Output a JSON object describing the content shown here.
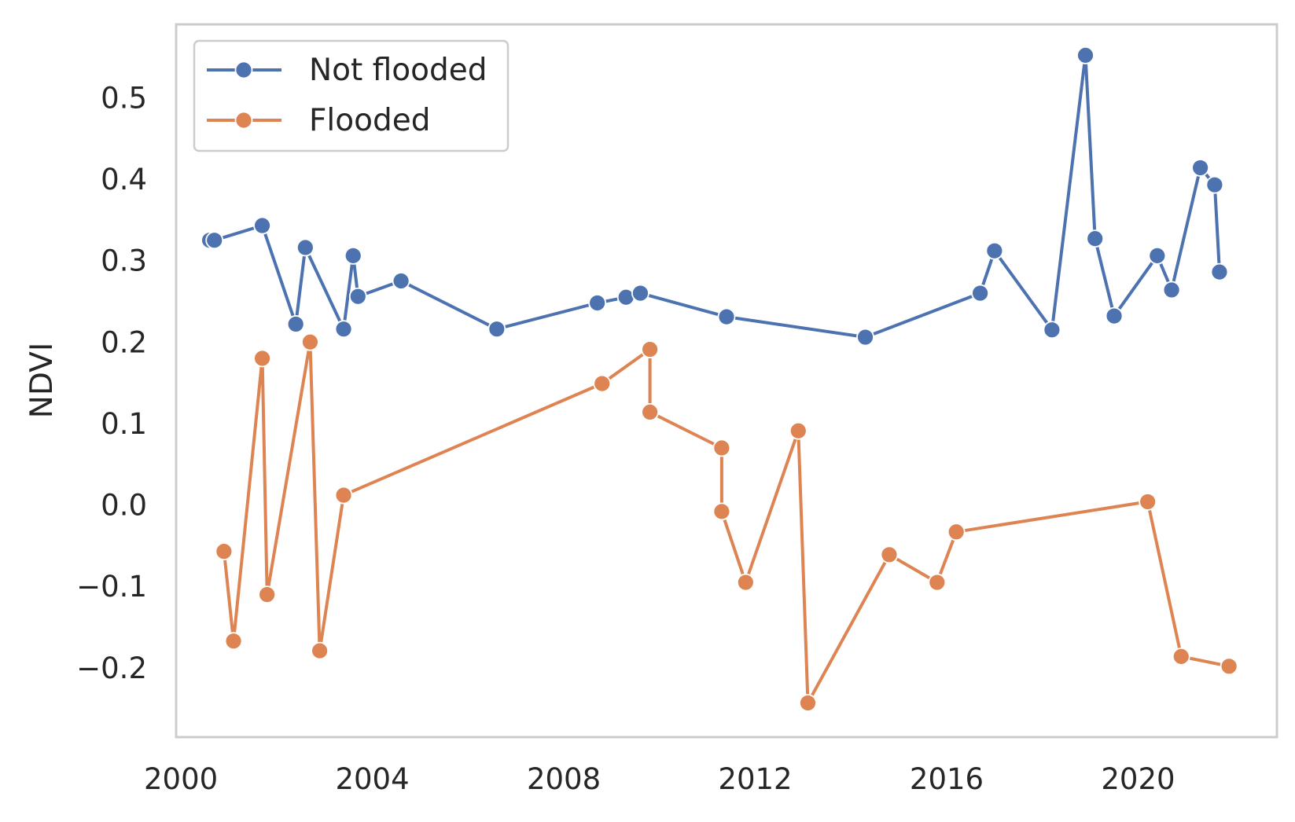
{
  "chart_data": {
    "type": "line",
    "xlabel": "",
    "ylabel": "NDVI",
    "xlim": [
      1999.9,
      2022.9
    ],
    "ylim": [
      -0.285,
      0.59
    ],
    "x_ticks": [
      2000,
      2004,
      2008,
      2012,
      2016,
      2020
    ],
    "y_ticks": [
      -0.2,
      -0.1,
      0.0,
      0.1,
      0.2,
      0.3,
      0.4,
      0.5
    ],
    "y_tick_labels": [
      "−0.2",
      "−0.1",
      "0.0",
      "0.1",
      "0.2",
      "0.3",
      "0.4",
      "0.5"
    ],
    "grid": false,
    "legend_position": "top-left",
    "marker": "circle",
    "series": [
      {
        "name": "Not flooded",
        "color": "#4c72b0",
        "points": [
          [
            2000.6,
            0.325
          ],
          [
            2000.7,
            0.325
          ],
          [
            2001.7,
            0.343
          ],
          [
            2002.4,
            0.222
          ],
          [
            2002.6,
            0.316
          ],
          [
            2003.4,
            0.216
          ],
          [
            2003.6,
            0.306
          ],
          [
            2003.7,
            0.256
          ],
          [
            2004.6,
            0.275
          ],
          [
            2006.6,
            0.216
          ],
          [
            2008.7,
            0.248
          ],
          [
            2009.3,
            0.255
          ],
          [
            2009.6,
            0.26
          ],
          [
            2011.4,
            0.231
          ],
          [
            2014.3,
            0.206
          ],
          [
            2016.7,
            0.26
          ],
          [
            2017.0,
            0.312
          ],
          [
            2018.2,
            0.215
          ],
          [
            2018.9,
            0.552
          ],
          [
            2019.1,
            0.327
          ],
          [
            2019.5,
            0.232
          ],
          [
            2020.4,
            0.306
          ],
          [
            2020.7,
            0.264
          ],
          [
            2021.3,
            0.414
          ],
          [
            2021.6,
            0.393
          ],
          [
            2021.7,
            0.286
          ]
        ]
      },
      {
        "name": "Flooded",
        "color": "#dd8452",
        "points": [
          [
            2000.9,
            -0.057
          ],
          [
            2001.1,
            -0.167
          ],
          [
            2001.7,
            0.18
          ],
          [
            2001.8,
            -0.11
          ],
          [
            2002.7,
            0.2
          ],
          [
            2002.9,
            -0.179
          ],
          [
            2003.4,
            0.012
          ],
          [
            2008.8,
            0.149
          ],
          [
            2009.8,
            0.191
          ],
          [
            2009.8,
            0.114
          ],
          [
            2011.3,
            0.07
          ],
          [
            2011.3,
            -0.008
          ],
          [
            2011.8,
            -0.095
          ],
          [
            2012.9,
            0.091
          ],
          [
            2013.1,
            -0.243
          ],
          [
            2014.8,
            -0.061
          ],
          [
            2015.8,
            -0.095
          ],
          [
            2016.2,
            -0.033
          ],
          [
            2020.2,
            0.004
          ],
          [
            2020.9,
            -0.186
          ],
          [
            2021.9,
            -0.198
          ]
        ]
      }
    ]
  }
}
